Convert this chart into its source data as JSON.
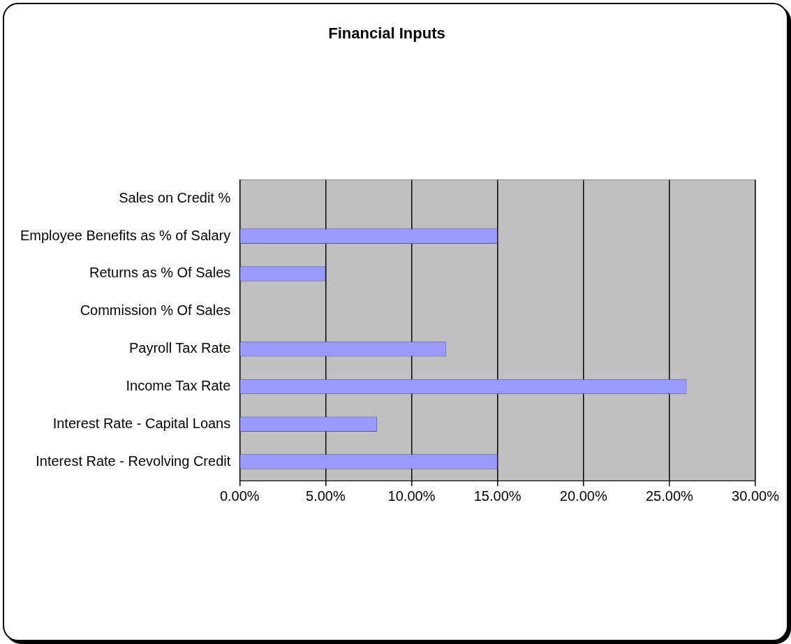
{
  "chart_data": {
    "type": "bar",
    "orientation": "horizontal",
    "title": "Financial Inputs",
    "categories": [
      "Sales on Credit %",
      "Employee Benefits as % of Salary",
      "Returns as % Of Sales",
      "Commission % Of Sales",
      "Payroll Tax Rate",
      "Income Tax Rate",
      "Interest Rate - Capital Loans",
      "Interest Rate - Revolving Credit"
    ],
    "values": [
      0,
      15,
      5,
      0,
      12,
      26,
      8,
      15
    ],
    "color": "#9999ff",
    "xlim": [
      0,
      30
    ],
    "xticks": [
      {
        "value": 0,
        "label": "0.00%"
      },
      {
        "value": 5,
        "label": "5.00%"
      },
      {
        "value": 10,
        "label": "10.00%"
      },
      {
        "value": 15,
        "label": "15.00%"
      },
      {
        "value": 20,
        "label": "20.00%"
      },
      {
        "value": 25,
        "label": "25.00%"
      },
      {
        "value": 30,
        "label": "30.00%"
      }
    ],
    "grid": "x",
    "legend": false
  }
}
